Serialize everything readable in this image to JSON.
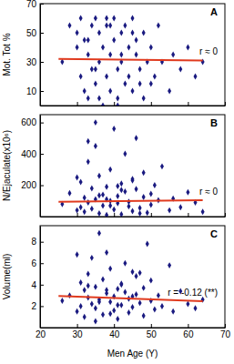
{
  "chart_data": [
    {
      "type": "scatter",
      "title": "A",
      "annotation": "r ≈ 0",
      "y_label": "Mot. Tot %",
      "xlim": [
        20,
        70
      ],
      "xticks": [
        20,
        30,
        40,
        50,
        60,
        70
      ],
      "ylim": [
        0,
        70
      ],
      "yticks": [
        10,
        30,
        50,
        70
      ],
      "tick_labels": "y",
      "series": [
        {
          "type": "scatter",
          "color": "#1a1a80",
          "marker": "diamond",
          "x": [
            26,
            28,
            30,
            31,
            31,
            32,
            32,
            33,
            33,
            34,
            34,
            35,
            35,
            36,
            36,
            37,
            37,
            38,
            38,
            39,
            39,
            40,
            40,
            41,
            41,
            42,
            42,
            43,
            43,
            44,
            44,
            45,
            45,
            46,
            46,
            47,
            48,
            48,
            49,
            50,
            50,
            51,
            52,
            53,
            55,
            56,
            58,
            60,
            62,
            64,
            30,
            33,
            36,
            39,
            42,
            45,
            47,
            35,
            38,
            41
          ],
          "values": [
            30,
            55,
            40,
            20,
            60,
            10,
            45,
            35,
            5,
            55,
            25,
            60,
            15,
            50,
            30,
            40,
            0,
            20,
            55,
            10,
            35,
            45,
            60,
            25,
            5,
            50,
            30,
            15,
            55,
            40,
            20,
            60,
            10,
            35,
            45,
            25,
            50,
            5,
            30,
            40,
            15,
            20,
            55,
            30,
            10,
            35,
            25,
            40,
            20,
            30,
            50,
            45,
            5,
            55,
            35,
            50,
            15,
            25,
            60,
            0
          ]
        },
        {
          "type": "line",
          "color": "#e03a1e",
          "x": [
            25,
            64
          ],
          "values": [
            32,
            31
          ]
        }
      ]
    },
    {
      "type": "scatter",
      "title": "B",
      "annotation": "r ≈ 0",
      "y_label": "N/Ejaculate(x10⁶)",
      "xlim": [
        20,
        70
      ],
      "xticks": [
        20,
        30,
        40,
        50,
        60,
        70
      ],
      "ylim": [
        0,
        650
      ],
      "yticks": [
        200,
        400,
        600
      ],
      "tick_labels": "y",
      "series": [
        {
          "type": "scatter",
          "color": "#1a1a80",
          "marker": "diamond",
          "x": [
            26,
            28,
            30,
            31,
            31,
            32,
            32,
            33,
            33,
            34,
            34,
            35,
            35,
            36,
            36,
            37,
            37,
            38,
            38,
            39,
            39,
            40,
            40,
            41,
            41,
            42,
            42,
            43,
            43,
            44,
            44,
            45,
            45,
            46,
            46,
            47,
            48,
            48,
            49,
            50,
            50,
            51,
            52,
            53,
            55,
            56,
            58,
            60,
            62,
            64,
            30,
            33,
            36,
            39,
            42,
            45,
            47,
            35,
            38,
            41
          ],
          "values": [
            80,
            150,
            40,
            220,
            60,
            120,
            30,
            350,
            90,
            180,
            50,
            600,
            110,
            20,
            260,
            140,
            70,
            10,
            190,
            300,
            100,
            45,
            560,
            130,
            85,
            210,
            15,
            160,
            400,
            65,
            95,
            240,
            35,
            175,
            500,
            55,
            125,
            280,
            25,
            145,
            75,
            200,
            105,
            320,
            40,
            115,
            60,
            155,
            90,
            30,
            250,
            480,
            135,
            70,
            170,
            230,
            20,
            450,
            110,
            195
          ]
        },
        {
          "type": "line",
          "color": "#e03a1e",
          "x": [
            25,
            64
          ],
          "values": [
            95,
            105
          ]
        }
      ]
    },
    {
      "type": "scatter",
      "title": "C",
      "annotation": "r = -0.12 (**)",
      "y_label": "Volume(ml)",
      "x_label": "Men Age (Y)",
      "xlim": [
        20,
        70
      ],
      "xticks": [
        20,
        30,
        40,
        50,
        60,
        70
      ],
      "ylim": [
        0,
        9.5
      ],
      "yticks": [
        2,
        4,
        6,
        8
      ],
      "series": [
        {
          "type": "scatter",
          "color": "#1a1a80",
          "marker": "diamond",
          "x": [
            26,
            28,
            30,
            31,
            31,
            32,
            32,
            33,
            33,
            34,
            34,
            35,
            35,
            36,
            36,
            37,
            37,
            38,
            38,
            39,
            39,
            40,
            40,
            41,
            41,
            42,
            42,
            43,
            43,
            44,
            44,
            45,
            45,
            46,
            46,
            47,
            48,
            48,
            49,
            50,
            50,
            51,
            52,
            53,
            55,
            56,
            58,
            60,
            62,
            64,
            30,
            33,
            36,
            39,
            42,
            45,
            47,
            35,
            38,
            41
          ],
          "values": [
            2.5,
            3.0,
            1.5,
            4.2,
            2.0,
            3.5,
            1.0,
            5.0,
            2.8,
            6.5,
            2.2,
            3.8,
            1.8,
            8.8,
            2.6,
            4.5,
            1.2,
            3.2,
            7.0,
            2.4,
            5.5,
            1.6,
            2.9,
            3.6,
            0.8,
            4.0,
            2.1,
            6.0,
            3.3,
            1.4,
            2.7,
            5.2,
            1.9,
            3.1,
            4.8,
            2.3,
            1.1,
            3.7,
            7.8,
            2.5,
            4.4,
            1.7,
            3.0,
            2.0,
            5.8,
            1.5,
            3.4,
            2.2,
            1.8,
            2.6,
            6.8,
            3.9,
            2.4,
            1.3,
            4.1,
            2.9,
            5.1,
            0.6,
            3.5,
            2.1
          ]
        },
        {
          "type": "line",
          "color": "#e03a1e",
          "x": [
            25,
            64
          ],
          "values": [
            2.95,
            2.45
          ]
        }
      ]
    }
  ]
}
